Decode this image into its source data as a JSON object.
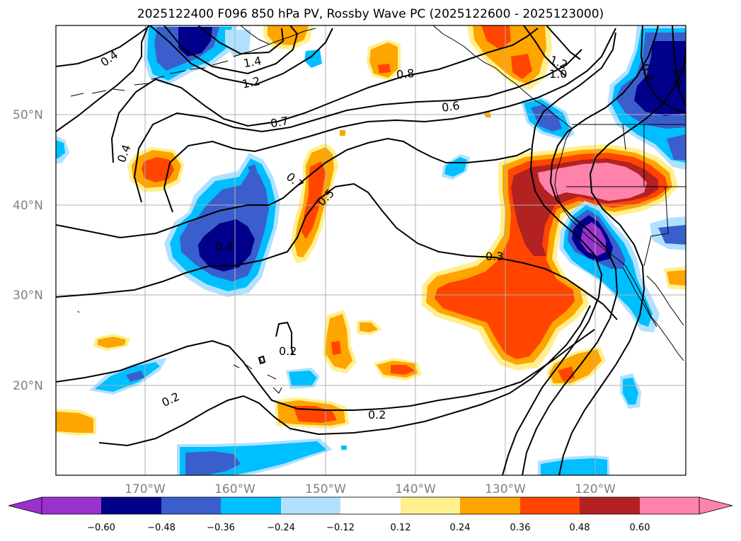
{
  "title": "2025122400 F096 850 hPa PV, Rossby Wave PC (2025122600 - 2025123000)",
  "lat_labels": [
    "50°N",
    "40°N",
    "30°N",
    "20°N"
  ],
  "lon_labels": [
    "170°W",
    "160°W",
    "150°W",
    "140°W",
    "130°W",
    "120°W"
  ],
  "colorbar": {
    "tick_labels": [
      "−0.60",
      "−0.48",
      "−0.36",
      "−0.24",
      "−0.12",
      "0.12",
      "0.24",
      "0.36",
      "0.48",
      "0.60"
    ],
    "colors": [
      "#9932cc",
      "#00008b",
      "#3a5fcd",
      "#00bfff",
      "#b0e2ff",
      "#ffffff",
      "#fff08f",
      "#ffa500",
      "#ff4500",
      "#b22222",
      "#ff82ab"
    ]
  },
  "contour_labels": [
    "0.4",
    "1.4",
    "1.2",
    "0.8",
    "1.2",
    "1.0",
    "0.6",
    "0.7",
    "0.4",
    "0.7",
    "0.5",
    "0.4",
    "0.3",
    "0.2",
    "0.2",
    "0.2",
    "0.8",
    "1.0"
  ],
  "colors": {
    "neg_060": "#9932cc",
    "neg_048": "#00008b",
    "neg_036": "#3a5fcd",
    "neg_024": "#00bfff",
    "neg_012": "#b0e2ff",
    "pos_012": "#fff08f",
    "pos_024": "#ffa500",
    "pos_036": "#ff4500",
    "pos_048": "#b22222",
    "pos_060": "#ff82ab"
  }
}
